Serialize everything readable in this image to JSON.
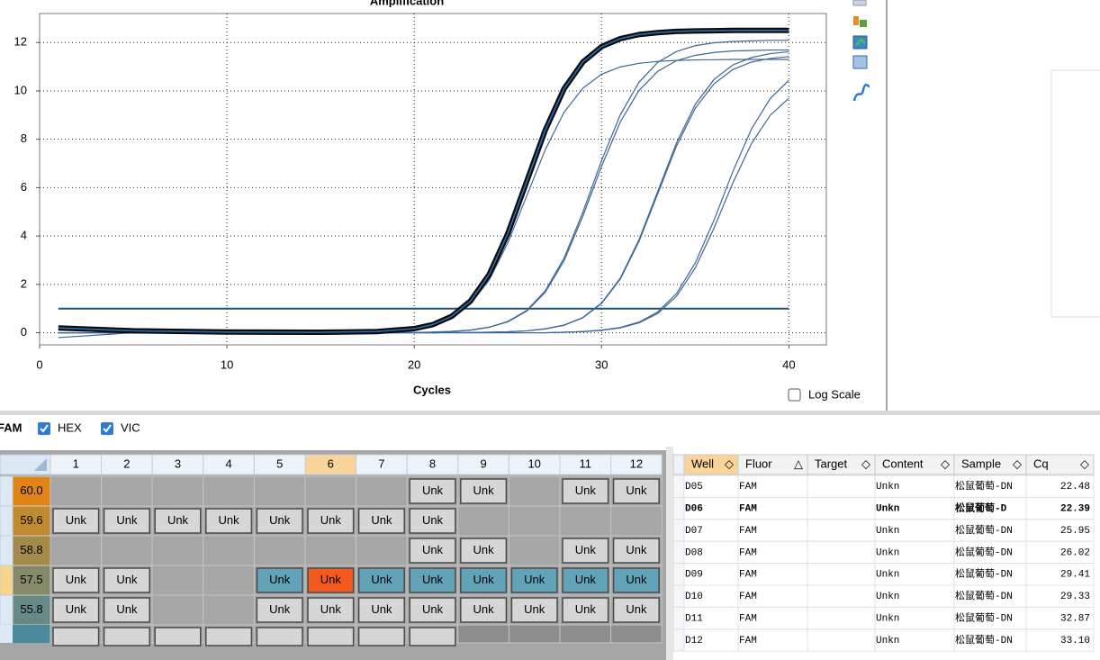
{
  "chart_data": {
    "type": "line",
    "title": "Amplification",
    "x_label": "Cycles",
    "x": [
      1,
      5,
      10,
      15,
      18,
      20,
      21,
      22,
      23,
      24,
      25,
      26,
      27,
      28,
      29,
      30,
      31,
      32,
      33,
      34,
      35,
      36,
      37,
      38,
      39,
      40
    ],
    "series": [
      {
        "color": "#3c6694",
        "values": [
          -0.2,
          0,
          0,
          0,
          0.03,
          0.15,
          0.31,
          0.62,
          1.19,
          2.18,
          3.72,
          5.65,
          7.58,
          9.12,
          10.11,
          10.69,
          10.99,
          11.14,
          11.22,
          11.26,
          11.28,
          11.29,
          11.3,
          11.3,
          11.3,
          11.3
        ]
      },
      {
        "color": "#0a0a0a",
        "values": [
          0.2,
          0.08,
          0.03,
          0.02,
          0.05,
          0.17,
          0.34,
          0.68,
          1.31,
          2.41,
          4.11,
          6.25,
          8.39,
          10.09,
          11.19,
          11.83,
          12.16,
          12.33,
          12.41,
          12.46,
          12.48,
          12.49,
          12.5,
          12.5,
          12.5,
          12.5
        ]
      },
      {
        "color": "#3c6694",
        "values": [
          0,
          0,
          0,
          0,
          0,
          0.01,
          0.03,
          0.06,
          0.11,
          0.23,
          0.47,
          0.92,
          1.74,
          3.09,
          4.98,
          7.12,
          9.01,
          10.36,
          11.18,
          11.63,
          11.87,
          11.99,
          12.04,
          12.07,
          12.09,
          12.09
        ]
      },
      {
        "color": "#3c6694",
        "values": [
          0,
          0,
          0,
          0,
          0,
          0.01,
          0.02,
          0.05,
          0.11,
          0.23,
          0.45,
          0.89,
          1.68,
          2.98,
          4.82,
          6.88,
          8.72,
          10.02,
          10.81,
          11.25,
          11.47,
          11.59,
          11.65,
          11.67,
          11.69,
          11.69
        ]
      },
      {
        "color": "#3c6694",
        "values": [
          0,
          0,
          0,
          0,
          0,
          0,
          0,
          0.01,
          0.01,
          0.02,
          0.04,
          0.08,
          0.16,
          0.32,
          0.63,
          1.23,
          2.26,
          3.85,
          5.85,
          7.85,
          9.44,
          10.47,
          11.07,
          11.38,
          11.54,
          11.62
        ]
      },
      {
        "color": "#3c6694",
        "values": [
          0,
          0,
          0,
          0,
          0,
          0,
          0,
          0.01,
          0.01,
          0.02,
          0.04,
          0.08,
          0.16,
          0.31,
          0.62,
          1.21,
          2.22,
          3.78,
          5.75,
          7.72,
          9.28,
          10.29,
          10.88,
          11.19,
          11.34,
          11.42
        ]
      },
      {
        "color": "#3c6694",
        "values": [
          0,
          0,
          0,
          0,
          0,
          0,
          0,
          0,
          0,
          0,
          0,
          0,
          0,
          0.02,
          0.05,
          0.11,
          0.22,
          0.44,
          0.86,
          1.62,
          2.88,
          4.65,
          6.65,
          8.42,
          9.68,
          10.44
        ]
      },
      {
        "color": "#3c6694",
        "values": [
          0,
          0,
          0,
          0,
          0,
          0,
          0,
          0,
          0,
          0,
          0,
          0,
          0,
          0.02,
          0.05,
          0.1,
          0.2,
          0.41,
          0.8,
          1.51,
          2.68,
          4.32,
          6.18,
          7.82,
          8.99,
          9.7
        ]
      }
    ],
    "xlim": [
      0,
      42
    ],
    "ylim": [
      -0.5,
      13.2
    ],
    "xticks": [
      0,
      10,
      20,
      30,
      40
    ],
    "yticks": [
      0,
      2,
      4,
      6,
      8,
      10,
      12
    ],
    "grid": true,
    "threshold": 1,
    "threshold_color": "#1f4e79",
    "log_scale": false,
    "log_scale_label": "Log Scale"
  },
  "fluor_filters": [
    "FAM",
    "HEX",
    "VIC"
  ],
  "plate": {
    "columns": [
      "1",
      "2",
      "3",
      "4",
      "5",
      "6",
      "7",
      "8",
      "9",
      "10",
      "11",
      "12"
    ],
    "rows": [
      {
        "label": "60.0",
        "wells": [
          null,
          null,
          null,
          null,
          null,
          null,
          null,
          "Unk",
          "Unk",
          null,
          "Unk",
          "Unk"
        ]
      },
      {
        "label": "59.6",
        "wells": [
          "Unk",
          "Unk",
          "Unk",
          "Unk",
          "Unk",
          "Unk",
          "Unk",
          "Unk",
          null,
          null,
          null,
          null
        ]
      },
      {
        "label": "58.8",
        "wells": [
          null,
          null,
          null,
          null,
          null,
          null,
          null,
          "Unk",
          "Unk",
          null,
          "Unk",
          "Unk"
        ]
      },
      {
        "label": "57.5",
        "wells": [
          "Unk",
          "Unk",
          null,
          null,
          "Unk",
          "Unk",
          "Unk",
          "Unk",
          "Unk",
          "Unk",
          "Unk",
          "Unk"
        ]
      },
      {
        "label": "55.8",
        "wells": [
          "Unk",
          "Unk",
          null,
          null,
          "Unk",
          "Unk",
          "Unk",
          "Unk",
          "Unk",
          "Unk",
          "Unk",
          "Unk"
        ]
      }
    ]
  },
  "results": {
    "columns": [
      {
        "name": "Well",
        "sort": "◇"
      },
      {
        "name": "Fluor",
        "sort": "△"
      },
      {
        "name": "Target",
        "sort": "◇"
      },
      {
        "name": "Content",
        "sort": "◇"
      },
      {
        "name": "Sample",
        "sort": "◇"
      },
      {
        "name": "Cq",
        "sort": "◇"
      }
    ],
    "rows": [
      [
        "D05",
        "FAM",
        null,
        "Unkn",
        "松鼠葡萄-DN",
        "22.48"
      ],
      [
        "D06",
        "FAM",
        null,
        "Unkn",
        "松鼠葡萄-D",
        "22.39"
      ],
      [
        "D07",
        "FAM",
        null,
        "Unkn",
        "松鼠葡萄-DN",
        "25.95"
      ],
      [
        "D08",
        "FAM",
        null,
        "Unkn",
        "松鼠葡萄-DN",
        "26.02"
      ],
      [
        "D09",
        "FAM",
        null,
        "Unkn",
        "松鼠葡萄-DN",
        "29.41"
      ],
      [
        "D10",
        "FAM",
        null,
        "Unkn",
        "松鼠葡萄-DN",
        "29.33"
      ],
      [
        "D11",
        "FAM",
        null,
        "Unkn",
        "松鼠葡萄-DN",
        "32.87"
      ],
      [
        "D12",
        "FAM",
        null,
        "Unkn",
        "松鼠葡萄-DN",
        "33.10"
      ]
    ]
  }
}
